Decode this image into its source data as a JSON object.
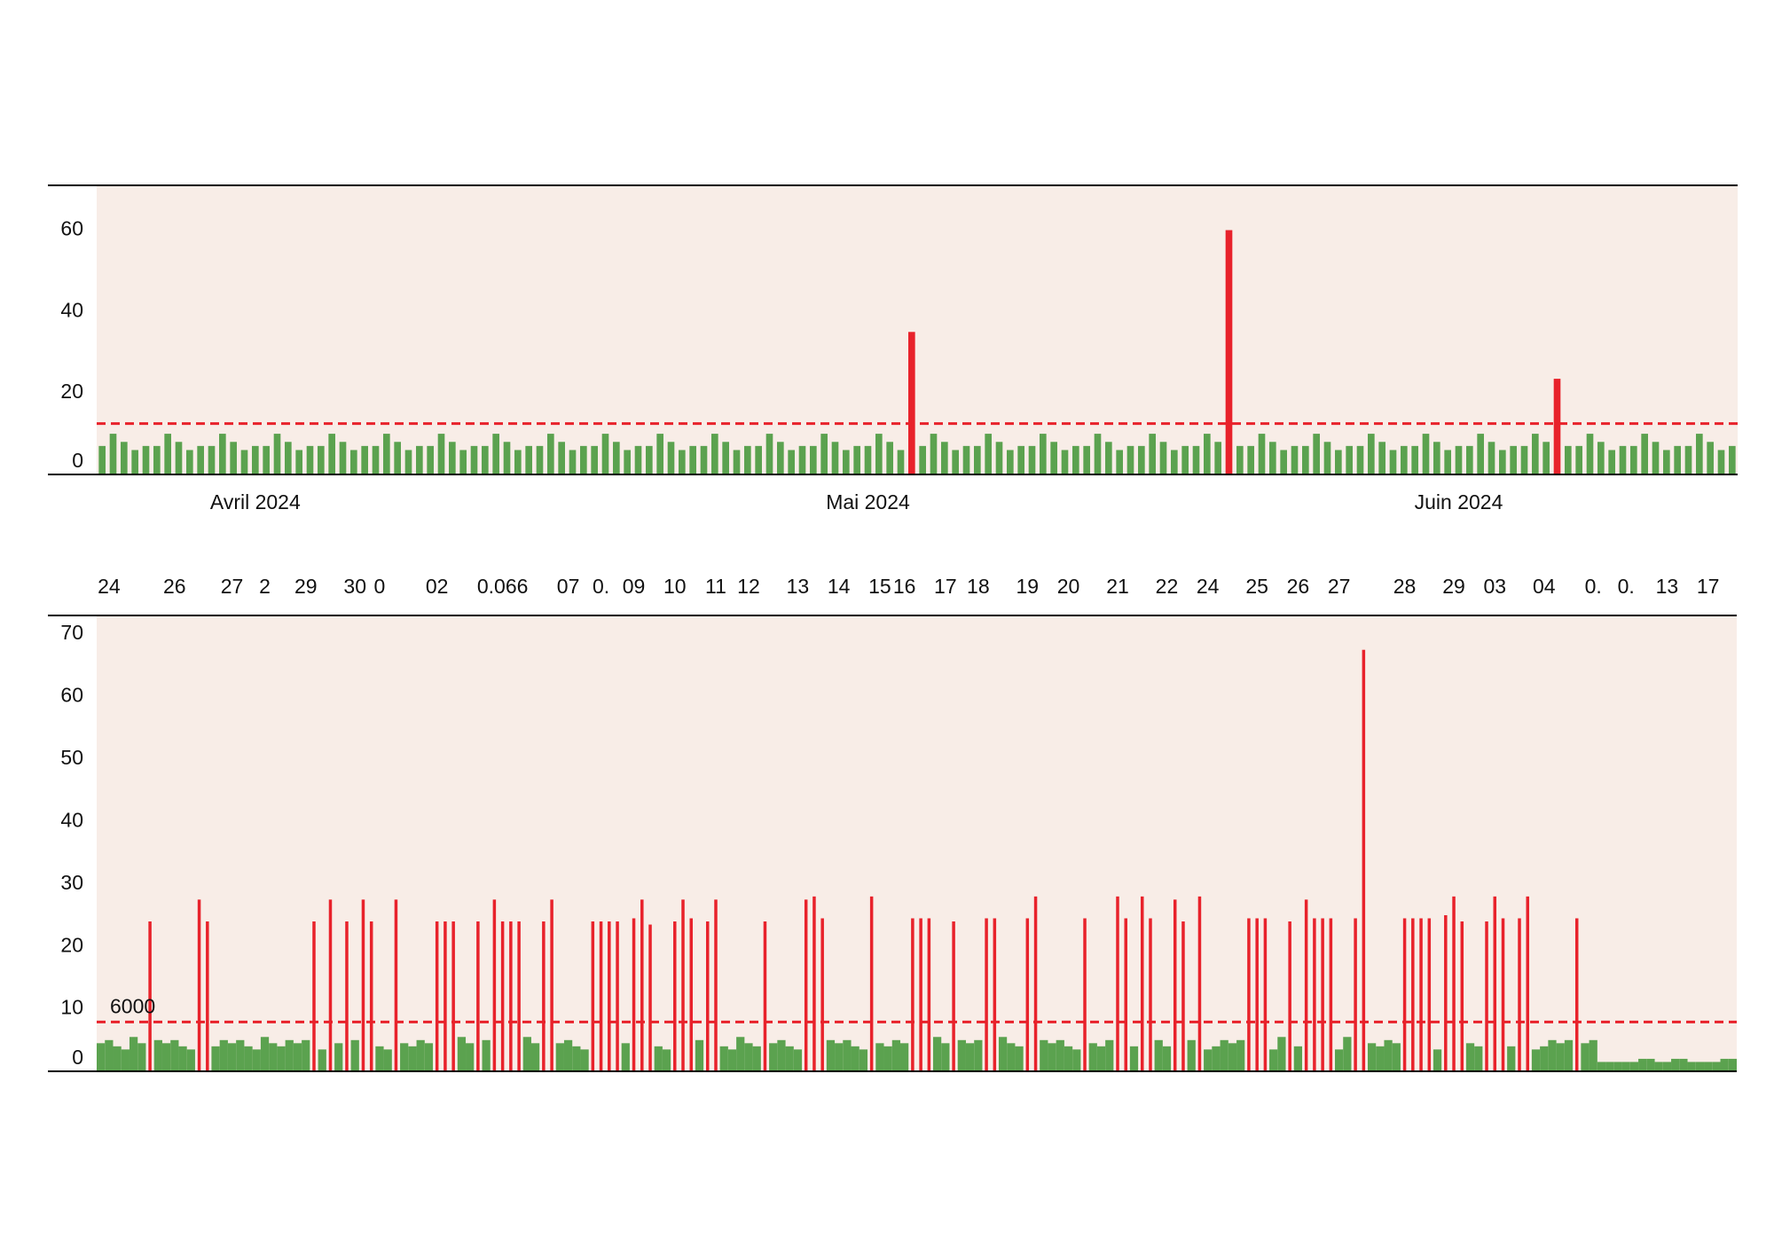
{
  "chart_data": [
    {
      "type": "bar",
      "categories": [
        null,
        null,
        null,
        null,
        null,
        null,
        null,
        null,
        null,
        null,
        null,
        null,
        null,
        null,
        "Avril 2024",
        null,
        null,
        null,
        null,
        null,
        null,
        null,
        null,
        null,
        null,
        null,
        null,
        null,
        null,
        null,
        null,
        null,
        null,
        null,
        null,
        null,
        null,
        null,
        null,
        null,
        null,
        null,
        null,
        null,
        null,
        null,
        null,
        null,
        null,
        null,
        null,
        null,
        null,
        null,
        null,
        null,
        null,
        null,
        null,
        null,
        null,
        null,
        null,
        null,
        null,
        null,
        null,
        null,
        null,
        null,
        "Mai 2024",
        null,
        null,
        null,
        null,
        null,
        null,
        null,
        null,
        null,
        null,
        null,
        null,
        null,
        null,
        null,
        null,
        null,
        null,
        null,
        null,
        null,
        null,
        null,
        null,
        null,
        null,
        null,
        null,
        null,
        null,
        null,
        null,
        null,
        null,
        null,
        null,
        null,
        null,
        null,
        null,
        null,
        null,
        null,
        null,
        null,
        null,
        null,
        null,
        null,
        null,
        null,
        null,
        null,
        "Juin 2024",
        null,
        null,
        null,
        null,
        null,
        null,
        null,
        null,
        null,
        null,
        null,
        null,
        null,
        null,
        null,
        null,
        null,
        null,
        null,
        null,
        null,
        null,
        null,
        null,
        null
      ],
      "values": [
        7,
        10,
        8,
        6,
        7,
        7,
        10,
        8,
        6,
        7,
        7,
        10,
        8,
        6,
        7,
        7,
        10,
        8,
        6,
        7,
        7,
        10,
        8,
        6,
        7,
        7,
        10,
        8,
        6,
        7,
        7,
        10,
        8,
        6,
        7,
        7,
        10,
        8,
        6,
        7,
        7,
        10,
        8,
        6,
        7,
        7,
        10,
        8,
        6,
        7,
        7,
        10,
        8,
        6,
        7,
        7,
        10,
        8,
        6,
        7,
        7,
        10,
        8,
        6,
        7,
        7,
        10,
        8,
        6,
        7,
        7,
        10,
        8,
        6,
        35,
        7,
        10,
        8,
        6,
        7,
        7,
        10,
        8,
        6,
        7,
        7,
        10,
        8,
        6,
        7,
        7,
        10,
        8,
        6,
        7,
        7,
        10,
        8,
        6,
        7,
        7,
        10,
        8,
        60,
        7,
        7,
        10,
        8,
        6,
        7,
        7,
        10,
        8,
        6,
        7,
        7,
        10,
        8,
        6,
        7,
        7,
        10,
        8,
        6,
        7,
        7,
        10,
        8,
        6,
        7,
        7,
        10,
        8,
        23.5,
        7,
        7,
        10,
        8,
        6,
        7,
        7,
        10,
        8,
        6,
        7,
        7,
        10,
        8,
        6,
        7
      ],
      "color": "#5ba24f",
      "spike_color": "#e8222b",
      "threshold": 12.5,
      "ylim": [
        0,
        71
      ],
      "yticks": [
        0,
        20,
        40,
        60
      ],
      "x_label_position": "bottom"
    },
    {
      "type": "bar",
      "categories": [
        null,
        "24",
        null,
        null,
        null,
        null,
        null,
        null,
        null,
        "26",
        null,
        null,
        null,
        null,
        null,
        null,
        "27",
        null,
        null,
        null,
        "2",
        null,
        null,
        null,
        null,
        "29",
        null,
        null,
        null,
        null,
        null,
        "30",
        null,
        null,
        "0",
        null,
        null,
        null,
        null,
        null,
        null,
        "02",
        null,
        null,
        null,
        null,
        null,
        null,
        null,
        "0.066",
        null,
        null,
        null,
        null,
        null,
        null,
        null,
        "07",
        null,
        null,
        null,
        "0.",
        null,
        null,
        null,
        "09",
        null,
        null,
        null,
        null,
        "10",
        null,
        null,
        null,
        null,
        "11",
        null,
        null,
        null,
        "12",
        null,
        null,
        null,
        null,
        null,
        "13",
        null,
        null,
        null,
        null,
        "14",
        null,
        null,
        null,
        null,
        "15",
        null,
        null,
        "16",
        null,
        null,
        null,
        null,
        "17",
        null,
        null,
        null,
        "18",
        null,
        null,
        null,
        null,
        null,
        "19",
        null,
        null,
        null,
        null,
        "20",
        null,
        null,
        null,
        null,
        null,
        "21",
        null,
        null,
        null,
        null,
        null,
        "22",
        null,
        null,
        null,
        null,
        "24",
        null,
        null,
        null,
        null,
        null,
        "25",
        null,
        null,
        null,
        null,
        "26",
        null,
        null,
        null,
        null,
        "27",
        null,
        null,
        null,
        null,
        null,
        null,
        null,
        "28",
        null,
        null,
        null,
        null,
        null,
        "29",
        null,
        null,
        null,
        null,
        "03",
        null,
        null,
        null,
        null,
        null,
        "04",
        null,
        null,
        null,
        null,
        null,
        "0.",
        null,
        null,
        null,
        "0.",
        null,
        null,
        null,
        null,
        "13",
        null,
        null,
        null,
        null,
        "17",
        null,
        null,
        null
      ],
      "values": [
        4.5,
        5,
        4,
        3.5,
        5.5,
        4.5,
        24,
        5,
        4.5,
        5,
        4,
        3.5,
        27.5,
        24,
        4,
        5,
        4.5,
        5,
        4,
        3.5,
        5.5,
        4.5,
        4,
        5,
        4.5,
        5,
        24,
        3.5,
        27.5,
        4.5,
        24,
        5,
        27.5,
        24,
        4,
        3.5,
        27.5,
        4.5,
        4,
        5,
        4.5,
        24,
        24,
        24,
        5.5,
        4.5,
        24,
        5,
        27.5,
        24,
        24,
        24,
        5.5,
        4.5,
        24,
        27.5,
        4.5,
        5,
        4,
        3.5,
        24,
        24,
        24,
        24,
        4.5,
        24.5,
        27.5,
        23.5,
        4,
        3.5,
        24,
        27.5,
        24.5,
        5,
        24,
        27.5,
        4,
        3.5,
        5.5,
        4.5,
        4,
        24,
        4.5,
        5,
        4,
        3.5,
        27.5,
        28,
        24.5,
        5,
        4.5,
        5,
        4,
        3.5,
        28,
        4.5,
        4,
        5,
        4.5,
        24.5,
        24.5,
        24.5,
        5.5,
        4.5,
        24,
        5,
        4.5,
        5,
        24.5,
        24.5,
        5.5,
        4.5,
        4,
        24.5,
        28,
        5,
        4.5,
        5,
        4,
        3.5,
        24.5,
        4.5,
        4,
        5,
        28,
        24.5,
        4,
        28,
        24.5,
        5,
        4,
        27.5,
        24,
        5,
        28,
        3.5,
        4,
        5,
        4.5,
        5,
        24.5,
        24.5,
        24.5,
        3.5,
        5.5,
        24,
        4,
        27.5,
        24.5,
        24.5,
        24.5,
        3.5,
        5.5,
        24.5,
        67.5,
        4.5,
        4,
        5,
        4.5,
        24.5,
        24.5,
        24.5,
        24.5,
        3.5,
        25,
        28,
        24,
        4.5,
        4,
        24,
        28,
        24.5,
        4,
        24.5,
        28,
        3.5,
        4,
        5,
        4.5,
        5,
        24.5,
        4.5,
        5,
        1.5,
        1.5,
        1.5,
        1.5,
        1.5,
        2,
        2,
        1.5,
        1.5,
        2,
        2,
        1.5,
        1.5,
        1.5,
        1.5,
        2,
        2
      ],
      "color": "#5ba24f",
      "spike_color": "#e8222b",
      "threshold": 7.9,
      "threshold_label": "6000",
      "ylim": [
        0,
        73
      ],
      "yticks": [
        0,
        10,
        20,
        30,
        40,
        50,
        60,
        70
      ],
      "x_label_position": "top"
    }
  ]
}
